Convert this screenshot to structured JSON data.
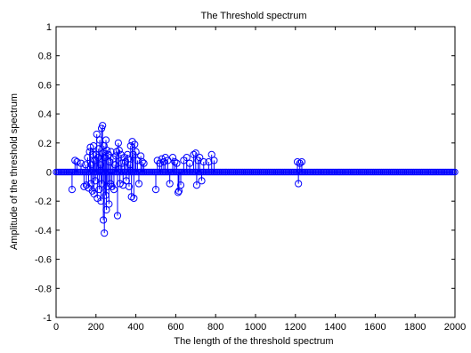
{
  "chart_data": {
    "type": "stem",
    "title": "The Threshold spectrum",
    "xlabel": "The length of the threshold spectrum",
    "ylabel": "Amplitude of the threshold spectrum",
    "xlim": [
      0,
      2000
    ],
    "ylim": [
      -1,
      1
    ],
    "xticks": [
      "0",
      "200",
      "400",
      "600",
      "800",
      "1000",
      "1200",
      "1400",
      "1600",
      "1800",
      "2000"
    ],
    "yticks": [
      "1",
      "0.8",
      "0.6",
      "0.4",
      "0.2",
      "0",
      "-0.2",
      "-0.4",
      "-0.6",
      "-0.8",
      "-1"
    ],
    "grid": false,
    "marker": "open circle",
    "colors": {
      "series": "#0000ff",
      "axes": "#000000",
      "background": "#ffffff"
    },
    "x_zero_range": [
      0,
      2000
    ],
    "x_zero_step": 8,
    "points": [
      [
        80,
        -0.12
      ],
      [
        95,
        0.08
      ],
      [
        105,
        0.07
      ],
      [
        125,
        0.06
      ],
      [
        140,
        -0.1
      ],
      [
        148,
        0.05
      ],
      [
        152,
        -0.09
      ],
      [
        158,
        0.1
      ],
      [
        163,
        -0.11
      ],
      [
        168,
        0.14
      ],
      [
        172,
        0.17
      ],
      [
        175,
        -0.08
      ],
      [
        178,
        0.05
      ],
      [
        182,
        -0.13
      ],
      [
        185,
        0.12
      ],
      [
        188,
        0.18
      ],
      [
        190,
        -0.15
      ],
      [
        193,
        0.08
      ],
      [
        197,
        -0.06
      ],
      [
        200,
        0.12
      ],
      [
        204,
        0.26
      ],
      [
        207,
        -0.18
      ],
      [
        210,
        0.1
      ],
      [
        213,
        0.16
      ],
      [
        216,
        -0.12
      ],
      [
        219,
        0.22
      ],
      [
        222,
        0.05
      ],
      [
        225,
        -0.2
      ],
      [
        228,
        0.3
      ],
      [
        230,
        -0.08
      ],
      [
        233,
        0.32
      ],
      [
        235,
        0.13
      ],
      [
        237,
        -0.33
      ],
      [
        240,
        0.18
      ],
      [
        242,
        -0.42
      ],
      [
        245,
        0.1
      ],
      [
        248,
        -0.16
      ],
      [
        250,
        0.22
      ],
      [
        252,
        -0.26
      ],
      [
        255,
        0.15
      ],
      [
        258,
        -0.1
      ],
      [
        262,
        0.12
      ],
      [
        265,
        -0.22
      ],
      [
        268,
        0.07
      ],
      [
        272,
        -0.08
      ],
      [
        275,
        0.14
      ],
      [
        280,
        -0.1
      ],
      [
        285,
        0.09
      ],
      [
        290,
        -0.12
      ],
      [
        295,
        0.05
      ],
      [
        300,
        0.11
      ],
      [
        304,
        0.14
      ],
      [
        308,
        -0.3
      ],
      [
        312,
        0.2
      ],
      [
        316,
        0.15
      ],
      [
        320,
        -0.08
      ],
      [
        325,
        0.12
      ],
      [
        330,
        0.06
      ],
      [
        336,
        -0.09
      ],
      [
        342,
        0.1
      ],
      [
        348,
        0.07
      ],
      [
        352,
        -0.06
      ],
      [
        358,
        0.12
      ],
      [
        362,
        0.09
      ],
      [
        366,
        -0.1
      ],
      [
        370,
        0.05
      ],
      [
        374,
        0.18
      ],
      [
        378,
        -0.17
      ],
      [
        382,
        0.21
      ],
      [
        386,
        0.12
      ],
      [
        390,
        -0.18
      ],
      [
        394,
        0.19
      ],
      [
        400,
        0.14
      ],
      [
        408,
        0.08
      ],
      [
        415,
        -0.08
      ],
      [
        425,
        0.11
      ],
      [
        432,
        0.07
      ],
      [
        440,
        0.06
      ],
      [
        500,
        -0.12
      ],
      [
        508,
        0.08
      ],
      [
        520,
        0.06
      ],
      [
        530,
        0.09
      ],
      [
        540,
        0.07
      ],
      [
        548,
        0.1
      ],
      [
        560,
        0.08
      ],
      [
        570,
        -0.08
      ],
      [
        585,
        0.1
      ],
      [
        595,
        0.07
      ],
      [
        605,
        0.06
      ],
      [
        612,
        -0.14
      ],
      [
        616,
        -0.13
      ],
      [
        625,
        -0.09
      ],
      [
        640,
        0.08
      ],
      [
        655,
        0.1
      ],
      [
        670,
        0.06
      ],
      [
        690,
        0.12
      ],
      [
        700,
        0.13
      ],
      [
        705,
        -0.09
      ],
      [
        712,
        0.08
      ],
      [
        720,
        0.1
      ],
      [
        730,
        -0.06
      ],
      [
        740,
        0.07
      ],
      [
        765,
        0.07
      ],
      [
        780,
        0.12
      ],
      [
        792,
        0.08
      ],
      [
        1210,
        0.07
      ],
      [
        1215,
        -0.08
      ],
      [
        1222,
        0.06
      ],
      [
        1232,
        0.07
      ]
    ]
  }
}
